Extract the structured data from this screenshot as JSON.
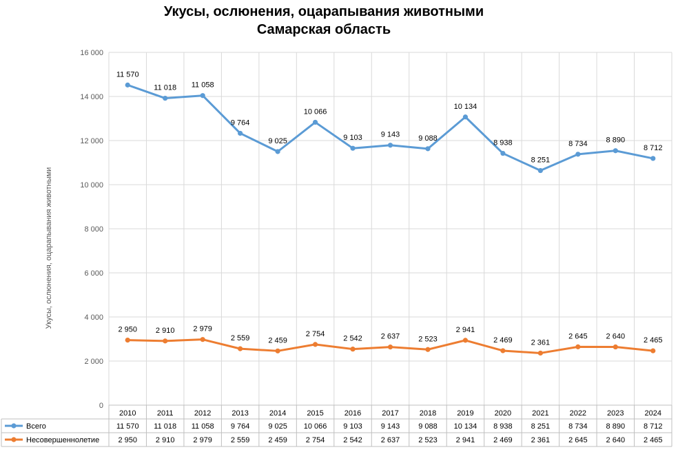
{
  "colors": {
    "total": "#5b9bd5",
    "minors": "#ed7d31",
    "grid": "#d9d9d9",
    "axis_text": "#595959"
  },
  "chart_data": {
    "type": "line",
    "title_line1": "Укусы, ослюнения, оцарапывания животными",
    "title_line2": "Самарская область",
    "xlabel": "",
    "ylabel": "Укусы, ослюнения, оцарапывания животными",
    "ylim": [
      0,
      16000
    ],
    "y_ticks": [
      0,
      2000,
      4000,
      6000,
      8000,
      10000,
      12000,
      14000,
      16000
    ],
    "y_tick_labels": [
      "0",
      "2 000",
      "4 000",
      "6 000",
      "8 000",
      "10 000",
      "12 000",
      "14 000",
      "16 000"
    ],
    "grid": true,
    "legend": "data-table",
    "categories": [
      "2010",
      "2011",
      "2012",
      "2013",
      "2014",
      "2015",
      "2016",
      "2017",
      "2018",
      "2019",
      "2020",
      "2021",
      "2022",
      "2023",
      "2024"
    ],
    "series": [
      {
        "name": "Всего",
        "color": "#5b9bd5",
        "values": [
          11570,
          11018,
          11058,
          9764,
          9025,
          10066,
          9103,
          9143,
          9088,
          10134,
          8938,
          8251,
          8734,
          8890,
          8712
        ],
        "labels": [
          "11 570",
          "11 018",
          "11 058",
          "9 764",
          "9 025",
          "10 066",
          "9 103",
          "9 143",
          "9 088",
          "10 134",
          "8 938",
          "8 251",
          "8 734",
          "8 890",
          "8 712"
        ],
        "plot_y": [
          14520,
          13920,
          14040,
          12330,
          11500,
          12830,
          11650,
          11790,
          11630,
          13070,
          11420,
          10640,
          11380,
          11540,
          11190
        ]
      },
      {
        "name": "Несовершеннолетие",
        "color": "#ed7d31",
        "values": [
          2950,
          2910,
          2979,
          2559,
          2459,
          2754,
          2542,
          2637,
          2523,
          2941,
          2469,
          2361,
          2645,
          2640,
          2465
        ],
        "labels": [
          "2 950",
          "2 910",
          "2 979",
          "2 559",
          "2 459",
          "2 754",
          "2 542",
          "2 637",
          "2 523",
          "2 941",
          "2 469",
          "2 361",
          "2 645",
          "2 640",
          "2 465"
        ]
      }
    ]
  }
}
